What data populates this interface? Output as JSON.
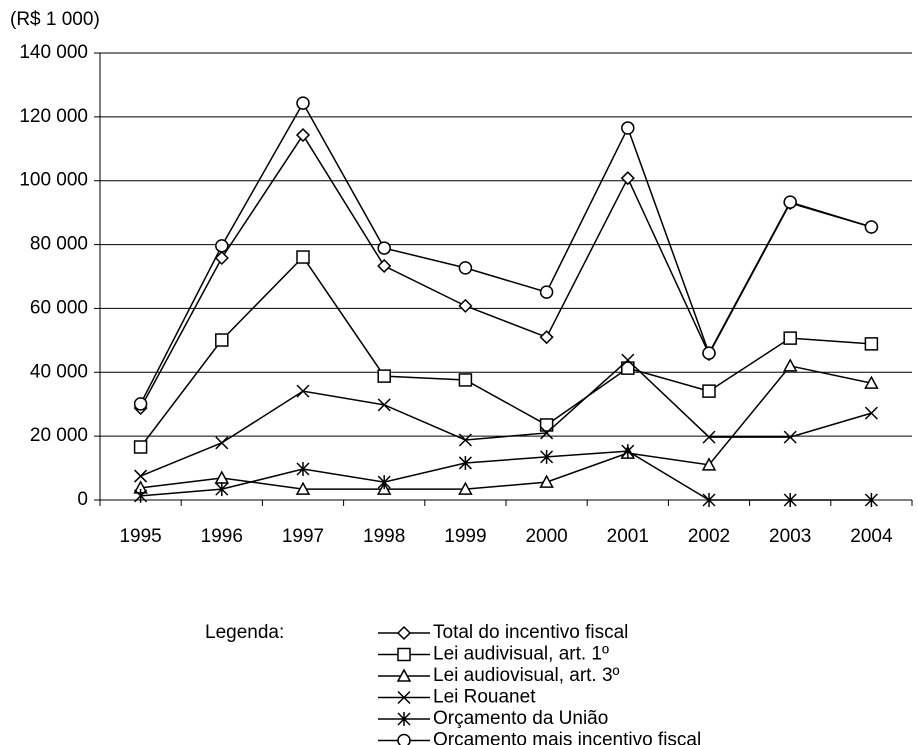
{
  "chart_data": {
    "type": "line",
    "y_label": "(R$ 1 000)",
    "legend_title": "Legenda:",
    "categories": [
      "1995",
      "1996",
      "1997",
      "1998",
      "1999",
      "2000",
      "2001",
      "2002",
      "2003",
      "2004"
    ],
    "ylim": [
      0,
      140000
    ],
    "yticks": [
      {
        "value": 0,
        "label": "0"
      },
      {
        "value": 20000,
        "label": "20 000"
      },
      {
        "value": 40000,
        "label": "40 000"
      },
      {
        "value": 60000,
        "label": "60 000"
      },
      {
        "value": 80000,
        "label": "80 000"
      },
      {
        "value": 100000,
        "label": "100 000"
      },
      {
        "value": 120000,
        "label": "120 000"
      },
      {
        "value": 140000,
        "label": "140 000"
      }
    ],
    "grid": true,
    "series": [
      {
        "name": "Total do incentivo fiscal",
        "color": "#000000",
        "marker": "diamond",
        "values": [
          28800,
          75800,
          114300,
          73300,
          60800,
          51000,
          100800,
          45700,
          93000,
          85500
        ]
      },
      {
        "name": "Lei audivisual, art. 1º",
        "color": "#000000",
        "marker": "square",
        "values": [
          16600,
          50100,
          76100,
          38800,
          37600,
          23500,
          41300,
          34100,
          50700,
          48900
        ]
      },
      {
        "name": "Lei audiovisual, art. 3º",
        "color": "#000000",
        "marker": "triangle",
        "values": [
          3800,
          6900,
          3400,
          3400,
          3400,
          5600,
          14700,
          11000,
          42000,
          36600
        ]
      },
      {
        "name": "Lei Rouanet",
        "color": "#000000",
        "marker": "x",
        "values": [
          7500,
          17900,
          34100,
          29800,
          18800,
          21000,
          43800,
          19700,
          19700,
          27200
        ]
      },
      {
        "name": "Orçamento da União",
        "color": "#000000",
        "marker": "star",
        "values": [
          1300,
          3400,
          9700,
          5600,
          11600,
          13500,
          15300,
          0,
          0,
          0
        ]
      },
      {
        "name": "Orçamento mais incentivo fiscal",
        "color": "#000000",
        "marker": "circle",
        "values": [
          30100,
          79600,
          124300,
          78900,
          72700,
          65100,
          116500,
          46000,
          93300,
          85500
        ]
      }
    ]
  }
}
